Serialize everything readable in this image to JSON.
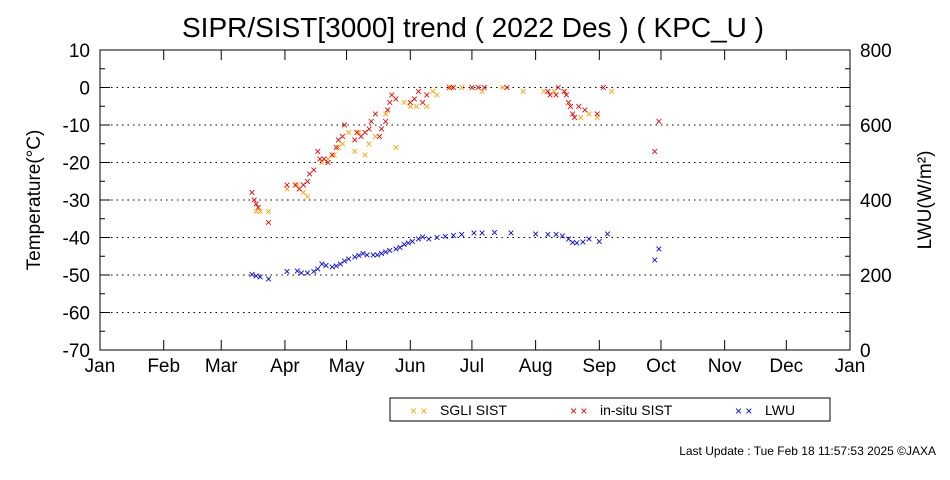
{
  "chart_data": {
    "type": "scatter",
    "title": "SIPR/SIST[3000] trend ( 2022 Des ) ( KPC_U )",
    "ylabel": "Temperature(°C)",
    "y2label": "LWU(W/m²)",
    "ylim": [
      -70,
      10
    ],
    "y2lim": [
      0,
      800
    ],
    "xlim": [
      0,
      365
    ],
    "yticks": [
      "10",
      "0",
      "-10",
      "-20",
      "-30",
      "-40",
      "-50",
      "-60",
      "-70"
    ],
    "y2ticks": [
      "800",
      "600",
      "400",
      "200",
      "0"
    ],
    "months": [
      "Jan",
      "Feb",
      "Mar",
      "Apr",
      "May",
      "Jun",
      "Jul",
      "Aug",
      "Sep",
      "Oct",
      "Nov",
      "Dec",
      "Jan"
    ],
    "grid": "dotted-horizontal",
    "legend_position": "bottom",
    "marker": "×",
    "series": [
      {
        "name": "SGLI SIST",
        "color": "#ffa500",
        "axis": "left",
        "points": [
          [
            76,
            -33
          ],
          [
            78,
            -33
          ],
          [
            82,
            -33
          ],
          [
            91,
            -27
          ],
          [
            96,
            -26
          ],
          [
            99,
            -28
          ],
          [
            101,
            -29
          ],
          [
            108,
            -20
          ],
          [
            111,
            -19
          ],
          [
            114,
            -18
          ],
          [
            116,
            -16
          ],
          [
            118,
            -15
          ],
          [
            121,
            -12
          ],
          [
            124,
            -17
          ],
          [
            126,
            -12
          ],
          [
            129,
            -18
          ],
          [
            131,
            -15
          ],
          [
            134,
            -13
          ],
          [
            139,
            -7
          ],
          [
            144,
            -16
          ],
          [
            148,
            -4
          ],
          [
            151,
            -5
          ],
          [
            154,
            -5
          ],
          [
            159,
            -5
          ],
          [
            162,
            -1
          ],
          [
            164,
            -2
          ],
          [
            171,
            0
          ],
          [
            176,
            0
          ],
          [
            181,
            0
          ],
          [
            186,
            -1
          ],
          [
            196,
            0
          ],
          [
            206,
            -1
          ],
          [
            216,
            -1
          ],
          [
            221,
            -1
          ],
          [
            226,
            -1
          ],
          [
            234,
            -8
          ],
          [
            238,
            -7
          ],
          [
            242,
            -8
          ],
          [
            249,
            -1
          ]
        ]
      },
      {
        "name": "in-situ SIST",
        "color": "#ee0000",
        "axis": "left",
        "points": [
          [
            74,
            -28
          ],
          [
            75,
            -30
          ],
          [
            76,
            -31
          ],
          [
            77,
            -32
          ],
          [
            82,
            -36
          ],
          [
            91,
            -26
          ],
          [
            95,
            -26
          ],
          [
            97,
            -27
          ],
          [
            99,
            -26
          ],
          [
            101,
            -25
          ],
          [
            102,
            -23
          ],
          [
            104,
            -22
          ],
          [
            106,
            -17
          ],
          [
            107,
            -19
          ],
          [
            109,
            -19
          ],
          [
            111,
            -20
          ],
          [
            113,
            -18
          ],
          [
            115,
            -16
          ],
          [
            116,
            -14
          ],
          [
            118,
            -13
          ],
          [
            119,
            -10
          ],
          [
            124,
            -14
          ],
          [
            125,
            -12
          ],
          [
            127,
            -13
          ],
          [
            129,
            -12
          ],
          [
            131,
            -11
          ],
          [
            132,
            -9
          ],
          [
            134,
            -7
          ],
          [
            136,
            -13
          ],
          [
            137,
            -11
          ],
          [
            139,
            -9
          ],
          [
            140,
            -6
          ],
          [
            141,
            -4
          ],
          [
            142,
            -2
          ],
          [
            144,
            -3
          ],
          [
            151,
            -4
          ],
          [
            153,
            -3
          ],
          [
            155,
            -1
          ],
          [
            157,
            -4
          ],
          [
            159,
            -2
          ],
          [
            170,
            0
          ],
          [
            172,
            0
          ],
          [
            181,
            0
          ],
          [
            184,
            0
          ],
          [
            187,
            0
          ],
          [
            198,
            0
          ],
          [
            218,
            -1
          ],
          [
            219,
            -2
          ],
          [
            222,
            -2
          ],
          [
            223,
            0
          ],
          [
            226,
            -1
          ],
          [
            227,
            -2
          ],
          [
            228,
            -4
          ],
          [
            229,
            -5
          ],
          [
            230,
            -7
          ],
          [
            231,
            -8
          ],
          [
            233,
            -5
          ],
          [
            236,
            -6
          ],
          [
            242,
            -7
          ],
          [
            245,
            0
          ],
          [
            270,
            -17
          ],
          [
            272,
            -9
          ]
        ]
      },
      {
        "name": "LWU",
        "color": "#0000dd",
        "axis": "right",
        "points": [
          [
            74,
            202
          ],
          [
            76,
            198
          ],
          [
            78,
            195
          ],
          [
            82,
            190
          ],
          [
            91,
            210
          ],
          [
            96,
            211
          ],
          [
            98,
            205
          ],
          [
            101,
            206
          ],
          [
            104,
            210
          ],
          [
            106,
            216
          ],
          [
            108,
            230
          ],
          [
            110,
            225
          ],
          [
            113,
            222
          ],
          [
            115,
            224
          ],
          [
            117,
            230
          ],
          [
            119,
            238
          ],
          [
            121,
            243
          ],
          [
            124,
            248
          ],
          [
            126,
            252
          ],
          [
            128,
            258
          ],
          [
            130,
            254
          ],
          [
            133,
            254
          ],
          [
            135,
            254
          ],
          [
            137,
            258
          ],
          [
            139,
            262
          ],
          [
            141,
            266
          ],
          [
            144,
            270
          ],
          [
            146,
            274
          ],
          [
            148,
            282
          ],
          [
            150,
            285
          ],
          [
            152,
            290
          ],
          [
            155,
            296
          ],
          [
            157,
            302
          ],
          [
            160,
            296
          ],
          [
            164,
            300
          ],
          [
            168,
            303
          ],
          [
            172,
            305
          ],
          [
            176,
            308
          ],
          [
            182,
            312
          ],
          [
            186,
            312
          ],
          [
            192,
            314
          ],
          [
            200,
            312
          ],
          [
            212,
            310
          ],
          [
            218,
            308
          ],
          [
            222,
            308
          ],
          [
            225,
            304
          ],
          [
            228,
            296
          ],
          [
            230,
            287
          ],
          [
            232,
            285
          ],
          [
            235,
            288
          ],
          [
            238,
            296
          ],
          [
            243,
            290
          ],
          [
            247,
            309
          ],
          [
            270,
            240
          ],
          [
            272,
            270
          ]
        ]
      }
    ]
  },
  "footer": {
    "last_update": "Last Update : Tue Feb 18 11:57:53 2025 ©JAXA"
  }
}
